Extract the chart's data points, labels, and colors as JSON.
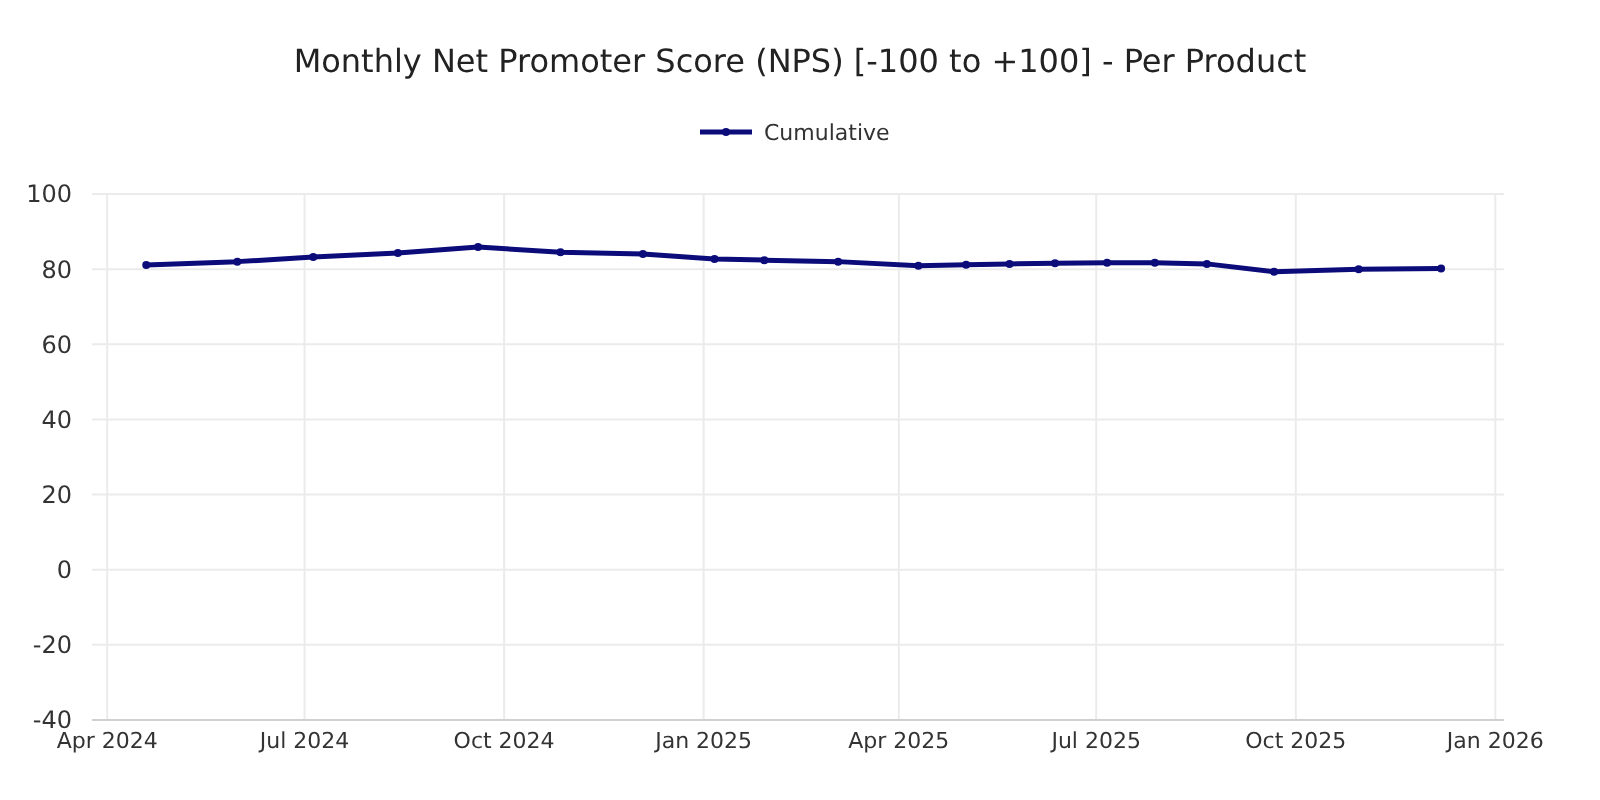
{
  "chart_data": {
    "type": "line",
    "title": "Monthly Net Promoter Score (NPS) [-100 to +100] - Per Product",
    "x": [
      "2024-04-19",
      "2024-05-31",
      "2024-07-05",
      "2024-08-13",
      "2024-09-19",
      "2024-10-27",
      "2024-12-04",
      "2025-01-06",
      "2025-01-29",
      "2025-03-04",
      "2025-04-10",
      "2025-05-02",
      "2025-05-22",
      "2025-06-12",
      "2025-07-06",
      "2025-07-28",
      "2025-08-21",
      "2025-09-21",
      "2025-10-30",
      "2025-12-07"
    ],
    "series": [
      {
        "name": "Cumulative",
        "color": "#0b0b7a",
        "values": [
          81.1,
          82.0,
          83.2,
          84.3,
          85.9,
          84.5,
          84.0,
          82.7,
          82.4,
          82.0,
          80.9,
          81.2,
          81.4,
          81.6,
          81.7,
          81.7,
          81.4,
          79.3,
          80.0,
          80.2
        ]
      }
    ],
    "xlim": [
      "2024-03-25",
      "2026-01-05"
    ],
    "xticks": [
      {
        "value": "2024-04-01",
        "label": "Apr 2024"
      },
      {
        "value": "2024-07-01",
        "label": "Jul 2024"
      },
      {
        "value": "2024-10-01",
        "label": "Oct 2024"
      },
      {
        "value": "2025-01-01",
        "label": "Jan 2025"
      },
      {
        "value": "2025-04-01",
        "label": "Apr 2025"
      },
      {
        "value": "2025-07-01",
        "label": "Jul 2025"
      },
      {
        "value": "2025-10-01",
        "label": "Oct 2025"
      },
      {
        "value": "2026-01-01",
        "label": "Jan 2026"
      }
    ],
    "ylim": [
      -40,
      100
    ],
    "yticks": [
      -40,
      -20,
      0,
      20,
      40,
      60,
      80,
      100
    ],
    "grid": true,
    "legend": "top",
    "marker": "circle",
    "line_style": "solid"
  }
}
